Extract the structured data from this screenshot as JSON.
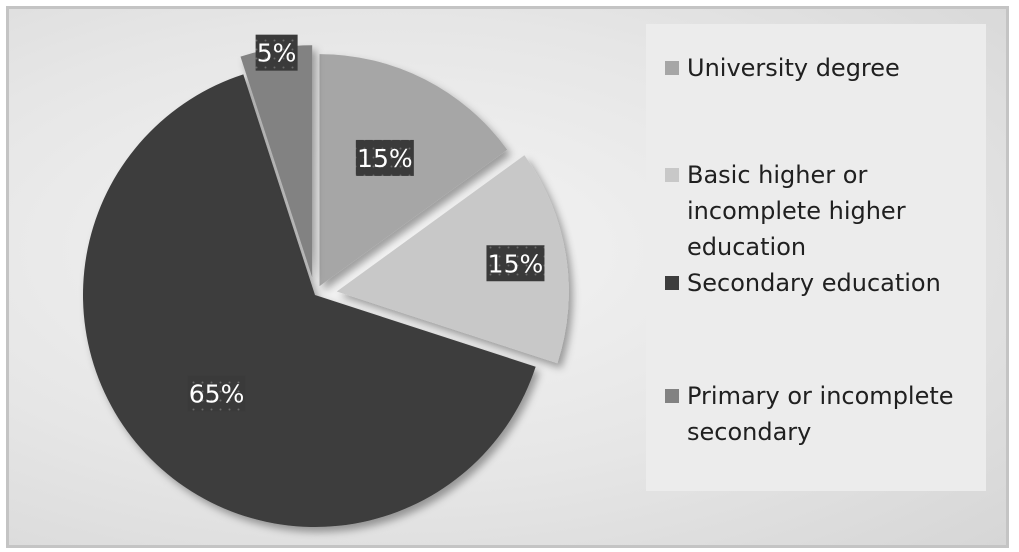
{
  "chart_data": {
    "type": "pie",
    "categories": [
      "University degree",
      "Basic higher or incomplete higher education",
      "Secondary education",
      "Primary or incomplete secondary"
    ],
    "values": [
      15,
      15,
      65,
      5
    ],
    "data_labels": [
      "15%",
      "15%",
      "65%",
      "5%"
    ],
    "colors": [
      "#a6a6a6",
      "#c8c8c8",
      "#3d3d3d",
      "#828282"
    ],
    "legend_position": "right",
    "exploded": true,
    "title": ""
  },
  "legend": {
    "items": [
      {
        "label_lines": [
          "University degree"
        ],
        "color": "#a6a6a6"
      },
      {
        "label_lines": [
          "Basic higher or",
          "incomplete higher",
          "education"
        ],
        "color": "#c8c8c8"
      },
      {
        "label_lines": [
          "Secondary education"
        ],
        "color": "#3d3d3d"
      },
      {
        "label_lines": [
          "Primary or incomplete",
          "secondary"
        ],
        "color": "#828282"
      }
    ]
  }
}
